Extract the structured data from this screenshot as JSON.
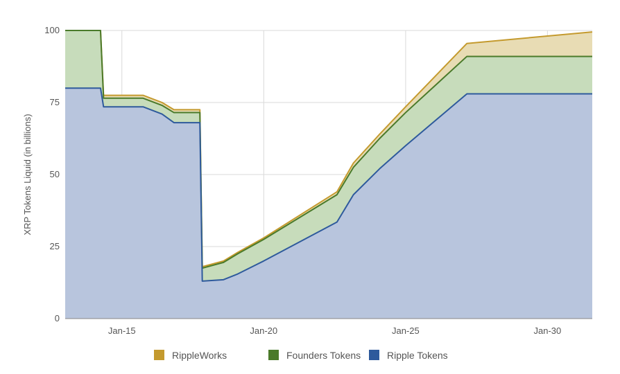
{
  "chart_data": {
    "type": "area",
    "ylabel": "XRP Tokens Liquid (in billions)",
    "ylim": [
      0,
      100
    ],
    "xlim": [
      "2013-01-01",
      "2031-08-01"
    ],
    "yticks": [
      0,
      25,
      50,
      75,
      100
    ],
    "xticks": [
      {
        "label": "Jan-15",
        "date": "2015-01-01"
      },
      {
        "label": "Jan-20",
        "date": "2020-01-01"
      },
      {
        "label": "Jan-25",
        "date": "2025-01-01"
      },
      {
        "label": "Jan-30",
        "date": "2030-01-01"
      }
    ],
    "grid": true,
    "legend_position": "bottom",
    "series": [
      {
        "name": "RippleWorks",
        "color": "#c49a2e",
        "fill": "#e8dcb4",
        "points": [
          [
            "2013-01-01",
            100
          ],
          [
            "2014-04-01",
            100
          ],
          [
            "2014-05-10",
            77.5
          ],
          [
            "2015-01-01",
            77.5
          ],
          [
            "2015-10-01",
            77.5
          ],
          [
            "2016-06-01",
            75
          ],
          [
            "2016-11-01",
            72.5
          ],
          [
            "2017-10-01",
            72.5
          ],
          [
            "2017-11-01",
            18
          ],
          [
            "2018-08-01",
            20
          ],
          [
            "2019-02-01",
            23
          ],
          [
            "2020-01-01",
            28
          ],
          [
            "2022-08-01",
            44
          ],
          [
            "2023-03-01",
            54
          ],
          [
            "2024-02-01",
            64
          ],
          [
            "2025-01-01",
            73.5
          ],
          [
            "2027-03-01",
            95.5
          ],
          [
            "2031-08-01",
            99.5
          ]
        ]
      },
      {
        "name": "Founders Tokens",
        "color": "#4a7a2a",
        "fill": "#c7dcbb",
        "points": [
          [
            "2013-01-01",
            100
          ],
          [
            "2014-04-01",
            100
          ],
          [
            "2014-05-10",
            76.5
          ],
          [
            "2015-01-01",
            76.5
          ],
          [
            "2015-10-01",
            76.5
          ],
          [
            "2016-06-01",
            74
          ],
          [
            "2016-11-01",
            71.5
          ],
          [
            "2017-10-01",
            71.5
          ],
          [
            "2017-11-01",
            17.5
          ],
          [
            "2018-08-01",
            19.5
          ],
          [
            "2019-02-01",
            22.5
          ],
          [
            "2020-01-01",
            27.5
          ],
          [
            "2022-08-01",
            43
          ],
          [
            "2023-03-01",
            52.5
          ],
          [
            "2024-02-01",
            62.5
          ],
          [
            "2025-01-01",
            71.5
          ],
          [
            "2027-03-01",
            91
          ],
          [
            "2031-08-01",
            91
          ]
        ]
      },
      {
        "name": "Ripple Tokens",
        "color": "#2e5a9c",
        "fill": "#b8c5dd",
        "points": [
          [
            "2013-01-01",
            80
          ],
          [
            "2014-04-01",
            80
          ],
          [
            "2014-05-10",
            73.5
          ],
          [
            "2015-01-01",
            73.5
          ],
          [
            "2015-10-01",
            73.5
          ],
          [
            "2016-06-01",
            71
          ],
          [
            "2016-11-01",
            68
          ],
          [
            "2017-10-01",
            68
          ],
          [
            "2017-11-01",
            13
          ],
          [
            "2018-08-01",
            13.5
          ],
          [
            "2019-02-01",
            15.5
          ],
          [
            "2020-01-01",
            20
          ],
          [
            "2022-08-01",
            33.5
          ],
          [
            "2023-03-01",
            43
          ],
          [
            "2024-02-01",
            52
          ],
          [
            "2025-01-01",
            60
          ],
          [
            "2027-03-01",
            78
          ],
          [
            "2031-08-01",
            78
          ]
        ]
      }
    ]
  }
}
